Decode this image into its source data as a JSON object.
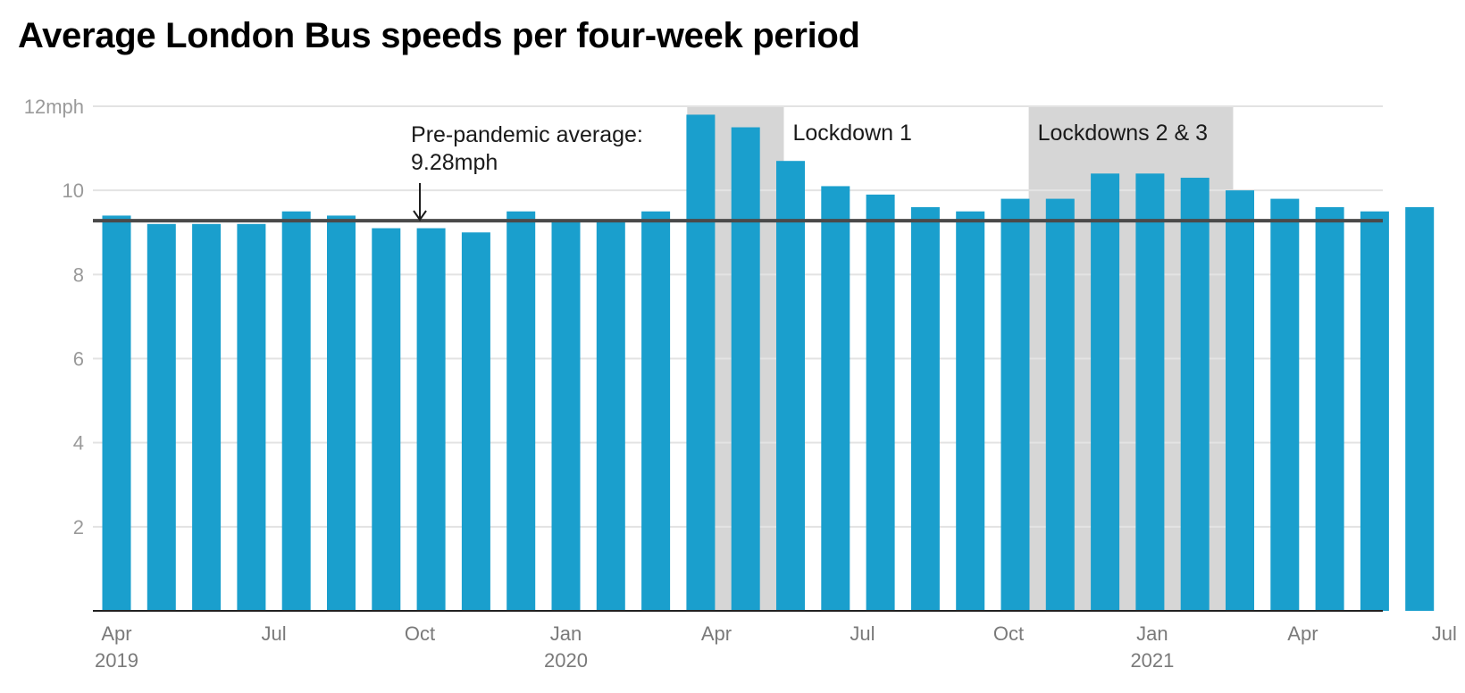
{
  "title": "Average London Bus speeds per four-week period",
  "colors": {
    "bar": "#1a9fcd",
    "shade": "#d6d6d6",
    "reference_line": "#4a4a4a",
    "grid": "#e3e3e3"
  },
  "chart_data": {
    "type": "bar",
    "title": "Average London Bus speeds per four-week period",
    "xlabel": "",
    "ylabel": "",
    "y_unit": "mph",
    "ylim": [
      0,
      12
    ],
    "y_ticks": [
      {
        "value": 12,
        "label": "12mph"
      },
      {
        "value": 10,
        "label": "10"
      },
      {
        "value": 8,
        "label": "8"
      },
      {
        "value": 6,
        "label": "6"
      },
      {
        "value": 4,
        "label": "4"
      },
      {
        "value": 2,
        "label": "2"
      }
    ],
    "grid": true,
    "x_ticks": [
      {
        "label": "Apr",
        "year": "2019",
        "bar_index": 0
      },
      {
        "label": "Jul",
        "bar_index": 3.5
      },
      {
        "label": "Oct",
        "bar_index": 6.75
      },
      {
        "label": "Jan",
        "year": "2020",
        "bar_index": 10.0
      },
      {
        "label": "Apr",
        "bar_index": 13.35
      },
      {
        "label": "Jul",
        "bar_index": 16.6
      },
      {
        "label": "Oct",
        "bar_index": 19.85
      },
      {
        "label": "Jan",
        "year": "2021",
        "bar_index": 23.05
      },
      {
        "label": "Apr",
        "bar_index": 26.4
      },
      {
        "label": "Jul",
        "bar_index": 29.55
      }
    ],
    "values": [
      9.4,
      9.2,
      9.2,
      9.2,
      9.5,
      9.4,
      9.1,
      9.1,
      9.0,
      9.5,
      9.3,
      9.3,
      9.5,
      11.8,
      11.5,
      10.7,
      10.1,
      9.9,
      9.6,
      9.5,
      9.8,
      9.8,
      10.4,
      10.4,
      10.3,
      10.0,
      9.8,
      9.6,
      9.5,
      9.6
    ],
    "reference_line": {
      "value": 9.28,
      "label_line1": "Pre-pandemic average:",
      "label_line2": "9.28mph",
      "arrow_bar_index": 6.75
    },
    "shaded_periods": [
      {
        "label": "Lockdown 1",
        "from_bar_index": 12.7,
        "to_bar_index": 14.85
      },
      {
        "label": "Lockdowns 2 & 3",
        "from_bar_index": 20.3,
        "to_bar_index": 24.85
      }
    ]
  }
}
